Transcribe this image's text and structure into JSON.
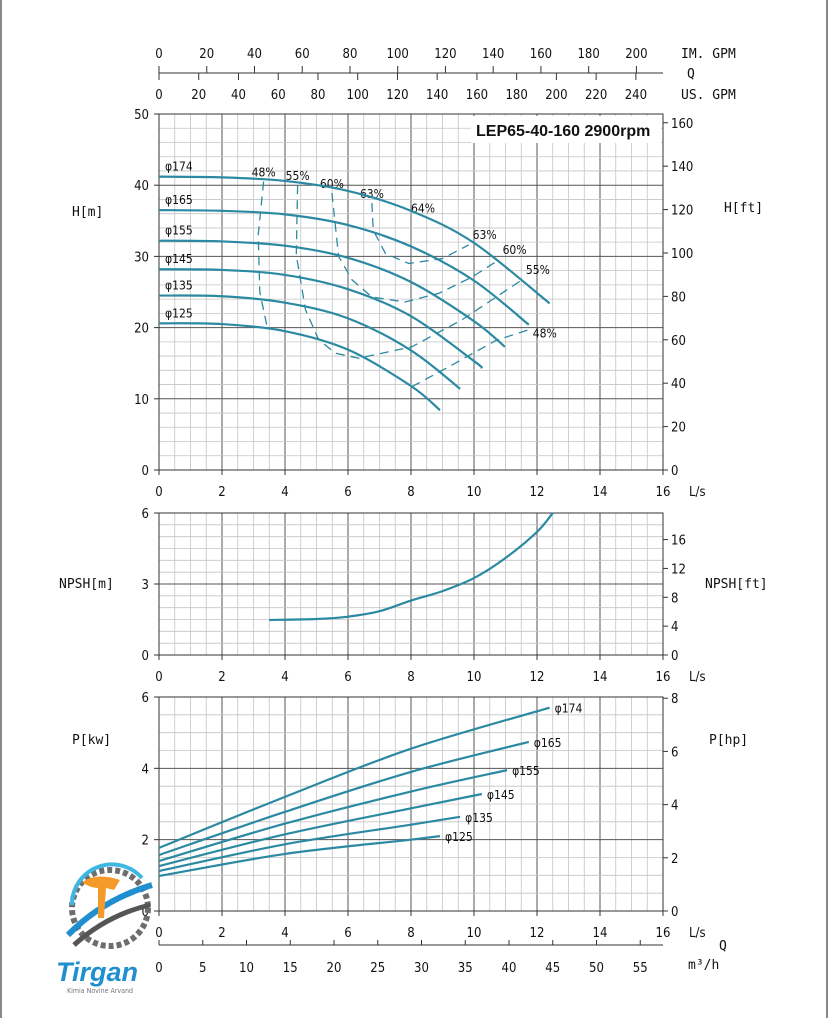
{
  "colors": {
    "curve": "#2b8aa2",
    "grid_minor": "#c4c4c4",
    "grid_major": "#555555",
    "logo_blue": "#1f8fcf",
    "logo_orange": "#f39a2b",
    "logo_gray": "#6d6d6d"
  },
  "flow_axes": {
    "q_label": "Q",
    "im_gpm": {
      "label": "IM. GPM",
      "ticks": [
        0,
        20,
        40,
        60,
        80,
        100,
        120,
        140,
        160,
        180,
        200
      ]
    },
    "us_gpm": {
      "label": "US. GPM",
      "ticks": [
        0,
        20,
        40,
        60,
        80,
        100,
        120,
        140,
        160,
        180,
        200,
        220,
        240
      ]
    },
    "m3h": {
      "label": "m³/h",
      "ticks": [
        0,
        5,
        10,
        15,
        20,
        25,
        30,
        35,
        40,
        45,
        50,
        55
      ]
    }
  },
  "logo": {
    "name": "Tirgan",
    "tagline": "Kimia Novine Arvand"
  },
  "chart_data": [
    {
      "type": "line",
      "id": "head",
      "title": "LEP65-40-160 2900rpm",
      "xlabel": "L/s",
      "ylabel": "H[m]",
      "ylabel_right": "H[ft]",
      "xlim": [
        0,
        16
      ],
      "ylim": [
        0,
        50
      ],
      "grid": true,
      "xticks": [
        0,
        2,
        4,
        6,
        8,
        10,
        12,
        14,
        16
      ],
      "yticks": [
        0,
        10,
        20,
        30,
        40,
        50
      ],
      "yticks_right": [
        0,
        20,
        40,
        60,
        80,
        100,
        120,
        140,
        160
      ],
      "right_unit_per_left": 3.2808,
      "series": [
        {
          "name": "φ174",
          "points": [
            [
              0,
              41.2
            ],
            [
              2,
              41.1
            ],
            [
              4,
              40.6
            ],
            [
              6,
              39.2
            ],
            [
              8,
              36.4
            ],
            [
              10,
              31.9
            ],
            [
              12.4,
              23.4
            ]
          ]
        },
        {
          "name": "φ165",
          "points": [
            [
              0,
              36.5
            ],
            [
              2,
              36.4
            ],
            [
              4,
              35.9
            ],
            [
              6,
              34.4
            ],
            [
              8,
              31.4
            ],
            [
              10,
              26.6
            ],
            [
              11.74,
              20.4
            ]
          ]
        },
        {
          "name": "φ155",
          "points": [
            [
              0,
              32.2
            ],
            [
              2,
              32.1
            ],
            [
              4,
              31.5
            ],
            [
              6,
              29.8
            ],
            [
              8,
              26.4
            ],
            [
              10,
              20.9
            ],
            [
              10.98,
              17.3
            ]
          ]
        },
        {
          "name": "φ145",
          "points": [
            [
              0,
              28.2
            ],
            [
              2,
              28.1
            ],
            [
              4,
              27.4
            ],
            [
              6,
              25.4
            ],
            [
              8,
              21.6
            ],
            [
              10,
              15.3
            ],
            [
              10.25,
              14.3
            ]
          ]
        },
        {
          "name": "φ135",
          "points": [
            [
              0,
              24.5
            ],
            [
              2,
              24.4
            ],
            [
              4,
              23.5
            ],
            [
              6,
              21.3
            ],
            [
              8,
              16.8
            ],
            [
              9.56,
              11.4
            ]
          ]
        },
        {
          "name": "φ125",
          "points": [
            [
              0,
              20.6
            ],
            [
              2,
              20.5
            ],
            [
              4,
              19.5
            ],
            [
              6,
              16.9
            ],
            [
              8,
              11.8
            ],
            [
              8.92,
              8.4
            ]
          ]
        }
      ],
      "efficiency": [
        {
          "label": "48%",
          "label_at": "start",
          "points": [
            [
              3.32,
              40.5
            ],
            [
              3.15,
              33
            ],
            [
              3.2,
              25
            ],
            [
              3.45,
              19.7
            ]
          ]
        },
        {
          "label": "55%",
          "label_at": "both",
          "points": [
            [
              4.4,
              40.0
            ],
            [
              4.36,
              30.2
            ],
            [
              4.65,
              22.5
            ],
            [
              5.07,
              18.3
            ],
            [
              5.6,
              16.4
            ],
            [
              6.34,
              15.7
            ],
            [
              8.03,
              17.3
            ],
            [
              9.62,
              21.1
            ],
            [
              11.52,
              26.7
            ]
          ]
        },
        {
          "label": "60%",
          "label_at": "both",
          "points": [
            [
              5.49,
              38.9
            ],
            [
              5.7,
              30.0
            ],
            [
              6.13,
              26.7
            ],
            [
              6.76,
              24.3
            ],
            [
              7.8,
              23.6
            ],
            [
              8.88,
              24.8
            ],
            [
              9.94,
              27.1
            ],
            [
              10.78,
              29.5
            ]
          ]
        },
        {
          "label": "63%",
          "label_at": "both",
          "points": [
            [
              6.76,
              37.5
            ],
            [
              6.8,
              33.7
            ],
            [
              7.19,
              30.4
            ],
            [
              7.93,
              29.0
            ],
            [
              9.0,
              29.7
            ],
            [
              9.83,
              31.6
            ]
          ]
        },
        {
          "label": "48%",
          "label_at": "end",
          "points": [
            [
              8.03,
              11.7
            ],
            [
              9.2,
              14.5
            ],
            [
              10.7,
              18.2
            ],
            [
              11.74,
              19.7
            ]
          ]
        }
      ],
      "annotations": [
        {
          "text": "64%",
          "x": 8.38,
          "y": 35.6
        }
      ]
    },
    {
      "type": "line",
      "id": "npsh",
      "xlabel": "L/s",
      "ylabel": "NPSH[m]",
      "ylabel_right": "NPSH[ft]",
      "xlim": [
        0,
        16
      ],
      "ylim": [
        0,
        6
      ],
      "grid": true,
      "xticks": [
        0,
        2,
        4,
        6,
        8,
        10,
        12,
        14,
        16
      ],
      "yticks": [
        0,
        3,
        6
      ],
      "yticks_right": [
        0,
        4,
        8,
        12,
        16
      ],
      "right_unit_per_left": 3.2808,
      "series": [
        {
          "name": "NPSH",
          "points": [
            [
              3.5,
              1.48
            ],
            [
              5,
              1.52
            ],
            [
              6,
              1.62
            ],
            [
              7,
              1.85
            ],
            [
              8,
              2.3
            ],
            [
              9,
              2.7
            ],
            [
              10,
              3.25
            ],
            [
              11,
              4.1
            ],
            [
              12,
              5.2
            ],
            [
              12.5,
              6.0
            ]
          ]
        }
      ]
    },
    {
      "type": "line",
      "id": "power",
      "xlabel": "L/s",
      "ylabel": "P[kw]",
      "ylabel_right": "P[hp]",
      "xlim": [
        0,
        16
      ],
      "ylim": [
        0,
        6
      ],
      "grid": true,
      "xticks": [
        0,
        2,
        4,
        6,
        8,
        10,
        12,
        14,
        16
      ],
      "yticks": [
        0,
        2,
        4,
        6
      ],
      "yticks_right": [
        0,
        2,
        4,
        6,
        8
      ],
      "right_unit_per_left": 1.341,
      "series": [
        {
          "name": "φ174",
          "points": [
            [
              0,
              1.77
            ],
            [
              4,
              3.2
            ],
            [
              8,
              4.55
            ],
            [
              12.4,
              5.7
            ]
          ]
        },
        {
          "name": "φ165",
          "points": [
            [
              0,
              1.57
            ],
            [
              4,
              2.78
            ],
            [
              8,
              3.9
            ],
            [
              11.74,
              4.74
            ]
          ]
        },
        {
          "name": "φ155",
          "points": [
            [
              0,
              1.4
            ],
            [
              4,
              2.45
            ],
            [
              8,
              3.35
            ],
            [
              11.05,
              3.95
            ]
          ]
        },
        {
          "name": "φ145",
          "points": [
            [
              0,
              1.26
            ],
            [
              4,
              2.15
            ],
            [
              8,
              2.88
            ],
            [
              10.25,
              3.28
            ]
          ]
        },
        {
          "name": "φ135",
          "points": [
            [
              0,
              1.12
            ],
            [
              4,
              1.87
            ],
            [
              8,
              2.42
            ],
            [
              9.56,
              2.64
            ]
          ]
        },
        {
          "name": "φ125",
          "points": [
            [
              0,
              0.98
            ],
            [
              4,
              1.6
            ],
            [
              8,
              2.0
            ],
            [
              8.92,
              2.1
            ]
          ]
        }
      ]
    }
  ]
}
